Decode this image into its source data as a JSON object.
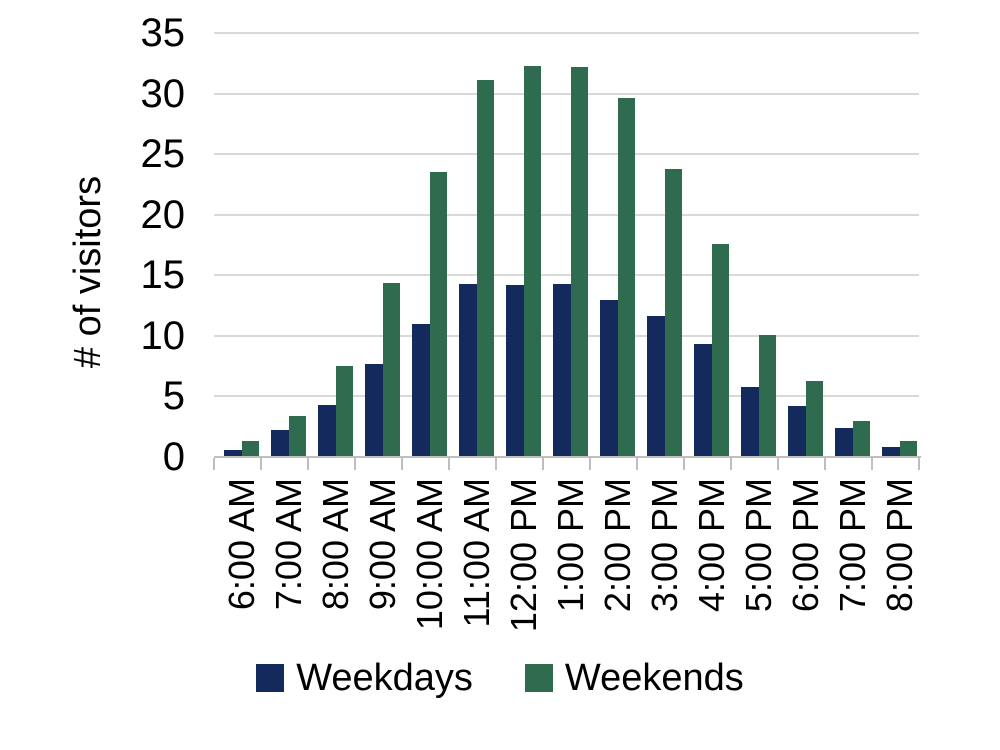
{
  "chart_data": {
    "type": "bar",
    "title": "",
    "ylabel": "# of visitors",
    "xlabel": "",
    "categories": [
      "6:00 AM",
      "7:00 AM",
      "8:00 AM",
      "9:00 AM",
      "10:00 AM",
      "11:00 AM",
      "12:00 PM",
      "1:00 PM",
      "2:00 PM",
      "3:00 PM",
      "4:00 PM",
      "5:00 PM",
      "6:00 PM",
      "7:00 PM",
      "8:00 PM"
    ],
    "series": [
      {
        "name": "Weekdays",
        "color": "#142a5c",
        "values": [
          0.6,
          2.2,
          4.3,
          7.7,
          11.0,
          14.3,
          14.2,
          14.3,
          13.0,
          11.6,
          9.3,
          5.8,
          4.2,
          2.4,
          0.8
        ]
      },
      {
        "name": "Weekends",
        "color": "#2f6b4e",
        "values": [
          1.3,
          3.4,
          7.5,
          14.4,
          23.5,
          31.1,
          32.3,
          32.2,
          29.6,
          23.8,
          17.6,
          10.1,
          6.3,
          3.0,
          1.3
        ]
      }
    ],
    "ylim": [
      0,
      35
    ],
    "yticks": [
      0,
      5,
      10,
      15,
      20,
      25,
      30,
      35
    ],
    "grid": true,
    "legend_position": "bottom",
    "colors": {
      "gridline": "#d9d9d9",
      "axis": "#bfbfbf",
      "text": "#000000",
      "background": "#ffffff"
    }
  }
}
